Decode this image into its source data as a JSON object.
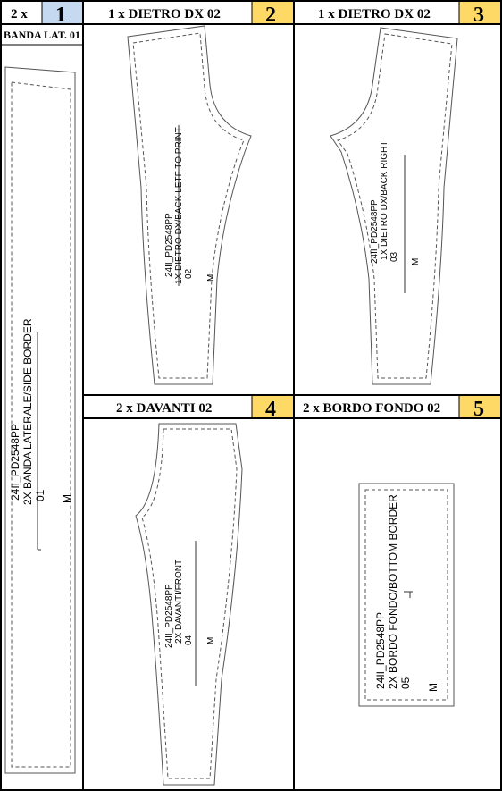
{
  "cells": [
    {
      "id": 1,
      "qty": "2 x",
      "number": "1",
      "subtitle": "BANDA LAT. 01",
      "badge_color": "#C5D9F1",
      "label_lines": [
        "24II_PD2548PP",
        "2X BANDA LATERALE/SIDE BORDER",
        "01"
      ],
      "size": "M"
    },
    {
      "id": 2,
      "title": "1 x DIETRO DX 02",
      "number": "2",
      "badge_color": "#FFD966",
      "label_lines": [
        "24II_PD2548PP",
        "1X DIETRO DX/BACK LETF TO PRINT",
        "02"
      ],
      "size": "M"
    },
    {
      "id": 3,
      "title": "1 x DIETRO DX 02",
      "number": "3",
      "badge_color": "#FFD966",
      "label_lines": [
        "24II_PD2548PP",
        "1X DIETRO DX/BACK RIGHT",
        "03"
      ],
      "size": "M"
    },
    {
      "id": 4,
      "title": "2 x DAVANTI 02",
      "number": "4",
      "badge_color": "#FFD966",
      "label_lines": [
        "24II_PD2548PP",
        "2X DAVANTI/FRONT",
        "04"
      ],
      "size": "M"
    },
    {
      "id": 5,
      "title": "2 x BORDO FONDO 02",
      "number": "5",
      "badge_color": "#FFD966",
      "label_lines": [
        "24II_PD2548PP",
        "2X BORDO FONDO/BOTTOM BORDER",
        "05"
      ],
      "size": "M"
    }
  ]
}
